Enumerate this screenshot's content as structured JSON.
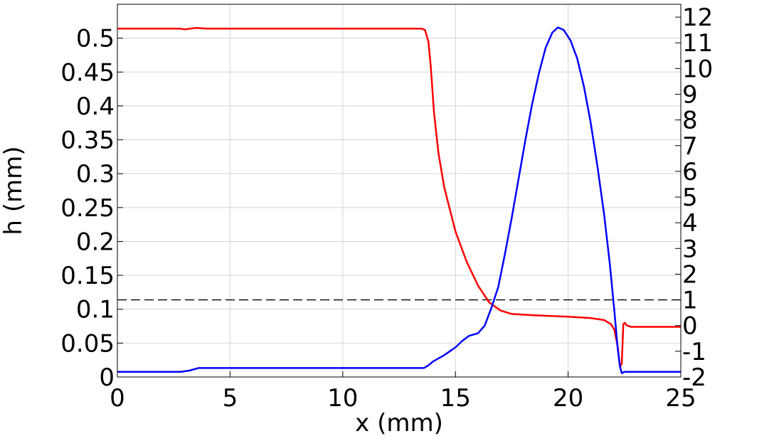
{
  "chart_data": {
    "type": "line",
    "xlabel": "x (mm)",
    "ylabel": "h (mm)",
    "y2label": "",
    "xlim": [
      0,
      25
    ],
    "ylim": [
      0,
      0.55
    ],
    "y2lim": [
      -2,
      12.5
    ],
    "x_ticks": [
      "0",
      "5",
      "10",
      "15",
      "20",
      "25"
    ],
    "y_ticks": [
      "0",
      "0.05",
      "0.1",
      "0.15",
      "0.2",
      "0.25",
      "0.3",
      "0.35",
      "0.4",
      "0.45",
      "0.5"
    ],
    "y2_ticks": [
      "-2",
      "-1",
      "0",
      "1",
      "2",
      "3",
      "4",
      "5",
      "6",
      "7",
      "8",
      "9",
      "10",
      "11",
      "12"
    ],
    "grid": true,
    "reference_line": {
      "axis": "right",
      "y": 1,
      "style": "dashed",
      "color": "#000000"
    },
    "series": [
      {
        "axis": "left",
        "color": "#ff0000",
        "points": [
          [
            0,
            0.514
          ],
          [
            2.8,
            0.514
          ],
          [
            3.0,
            0.513
          ],
          [
            3.5,
            0.515
          ],
          [
            4.0,
            0.514
          ],
          [
            10,
            0.514
          ],
          [
            13.2,
            0.514
          ],
          [
            13.5,
            0.514
          ],
          [
            13.65,
            0.512
          ],
          [
            13.8,
            0.495
          ],
          [
            13.9,
            0.46
          ],
          [
            14.05,
            0.39
          ],
          [
            14.25,
            0.33
          ],
          [
            14.5,
            0.28
          ],
          [
            15.0,
            0.215
          ],
          [
            15.5,
            0.17
          ],
          [
            16.0,
            0.135
          ],
          [
            16.5,
            0.11
          ],
          [
            17.0,
            0.098
          ],
          [
            17.5,
            0.093
          ],
          [
            18.5,
            0.091
          ],
          [
            20.0,
            0.089
          ],
          [
            21.0,
            0.087
          ],
          [
            21.6,
            0.084
          ],
          [
            21.9,
            0.078
          ],
          [
            22.05,
            0.07
          ],
          [
            22.2,
            0.045
          ],
          [
            22.3,
            0.015
          ],
          [
            22.38,
            0.02
          ],
          [
            22.45,
            0.078
          ],
          [
            22.52,
            0.08
          ],
          [
            22.6,
            0.076
          ],
          [
            22.8,
            0.074
          ],
          [
            25,
            0.074
          ]
        ]
      },
      {
        "axis": "right",
        "color": "#0000ff",
        "points": [
          [
            0,
            -1.8
          ],
          [
            2.8,
            -1.8
          ],
          [
            3.2,
            -1.75
          ],
          [
            3.6,
            -1.65
          ],
          [
            10,
            -1.65
          ],
          [
            13.6,
            -1.65
          ],
          [
            13.8,
            -1.55
          ],
          [
            14.0,
            -1.4
          ],
          [
            14.5,
            -1.15
          ],
          [
            15.0,
            -0.85
          ],
          [
            15.3,
            -0.6
          ],
          [
            15.6,
            -0.4
          ],
          [
            16.0,
            -0.3
          ],
          [
            16.3,
            0.0
          ],
          [
            16.6,
            0.7
          ],
          [
            16.9,
            1.5
          ],
          [
            17.2,
            2.8
          ],
          [
            17.5,
            4.2
          ],
          [
            17.8,
            5.7
          ],
          [
            18.1,
            7.2
          ],
          [
            18.4,
            8.6
          ],
          [
            18.7,
            9.8
          ],
          [
            19.0,
            10.8
          ],
          [
            19.3,
            11.4
          ],
          [
            19.55,
            11.6
          ],
          [
            19.8,
            11.5
          ],
          [
            20.1,
            11.1
          ],
          [
            20.4,
            10.4
          ],
          [
            20.7,
            9.3
          ],
          [
            21.0,
            7.9
          ],
          [
            21.3,
            6.2
          ],
          [
            21.6,
            4.3
          ],
          [
            21.85,
            2.4
          ],
          [
            22.05,
            0.6
          ],
          [
            22.2,
            -0.9
          ],
          [
            22.3,
            -1.6
          ],
          [
            22.38,
            -1.85
          ],
          [
            22.5,
            -1.8
          ],
          [
            25,
            -1.8
          ]
        ]
      }
    ]
  }
}
